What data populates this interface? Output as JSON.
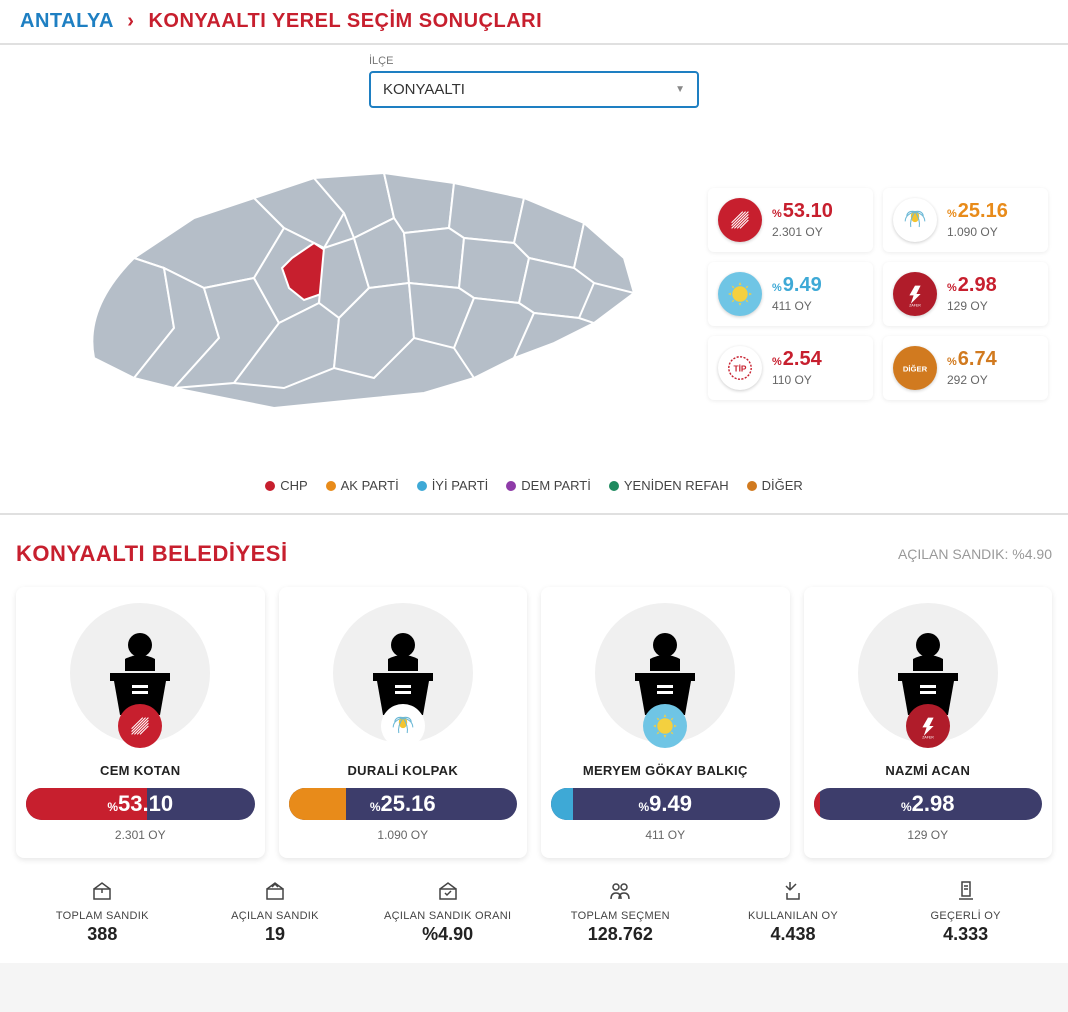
{
  "breadcrumb": {
    "province": "ANTALYA",
    "title": "KONYAALTI YEREL SEÇİM SONUÇLARI"
  },
  "dropdown": {
    "label": "İLÇE",
    "value": "KONYAALTI"
  },
  "parties": [
    {
      "name": "CHP",
      "pct": "53.10",
      "votes": "2.301 OY",
      "color": "#c71f2e",
      "bg": "#c71f2e"
    },
    {
      "name": "AK PARTİ",
      "pct": "25.16",
      "votes": "1.090 OY",
      "color": "#e88b1a",
      "bg": "#fff"
    },
    {
      "name": "İYİ PARTİ",
      "pct": "9.49",
      "votes": "411 OY",
      "color": "#3ea9d6",
      "bg": "#6fc5e5"
    },
    {
      "name": "ZAFER",
      "pct": "2.98",
      "votes": "129 OY",
      "color": "#c71f2e",
      "bg": "#b01c2a"
    },
    {
      "name": "TİP",
      "pct": "2.54",
      "votes": "110 OY",
      "color": "#c71f2e",
      "bg": "#fff"
    },
    {
      "name": "DİĞER",
      "pct": "6.74",
      "votes": "292 OY",
      "color": "#d17a1f",
      "bg": "#d17a1f"
    }
  ],
  "legend": [
    {
      "label": "CHP",
      "color": "#c71f2e"
    },
    {
      "label": "AK PARTİ",
      "color": "#e88b1a"
    },
    {
      "label": "İYİ PARTİ",
      "color": "#3ea9d6"
    },
    {
      "label": "DEM PARTİ",
      "color": "#8e3ba8"
    },
    {
      "label": "YENİDEN REFAH",
      "color": "#1d8a5e"
    },
    {
      "label": "DİĞER",
      "color": "#d17a1f"
    }
  ],
  "municipality": {
    "title": "KONYAALTI BELEDİYESİ",
    "opened_label": "AÇILAN SANDIK: %4.90"
  },
  "candidates": [
    {
      "name": "CEM KOTAN",
      "pct": "53.10",
      "votes": "2.301 OY",
      "fill_pct": 53.1,
      "fill_color": "#c71f2e",
      "badge_bg": "#c71f2e"
    },
    {
      "name": "DURALİ KOLPAK",
      "pct": "25.16",
      "votes": "1.090 OY",
      "fill_pct": 25.16,
      "fill_color": "#e88b1a",
      "badge_bg": "#fff"
    },
    {
      "name": "MERYEM GÖKAY BALKIÇ",
      "pct": "9.49",
      "votes": "411 OY",
      "fill_pct": 9.49,
      "fill_color": "#3ea9d6",
      "badge_bg": "#6fc5e5"
    },
    {
      "name": "NAZMİ ACAN",
      "pct": "2.98",
      "votes": "129 OY",
      "fill_pct": 2.98,
      "fill_color": "#c71f2e",
      "badge_bg": "#b01c2a"
    }
  ],
  "stats": [
    {
      "label": "TOPLAM SANDIK",
      "value": "388"
    },
    {
      "label": "AÇILAN SANDIK",
      "value": "19"
    },
    {
      "label": "AÇILAN SANDIK ORANI",
      "value": "%4.90"
    },
    {
      "label": "TOPLAM SEÇMEN",
      "value": "128.762"
    },
    {
      "label": "KULLANILAN OY",
      "value": "4.438"
    },
    {
      "label": "GEÇERLİ OY",
      "value": "4.333"
    }
  ]
}
